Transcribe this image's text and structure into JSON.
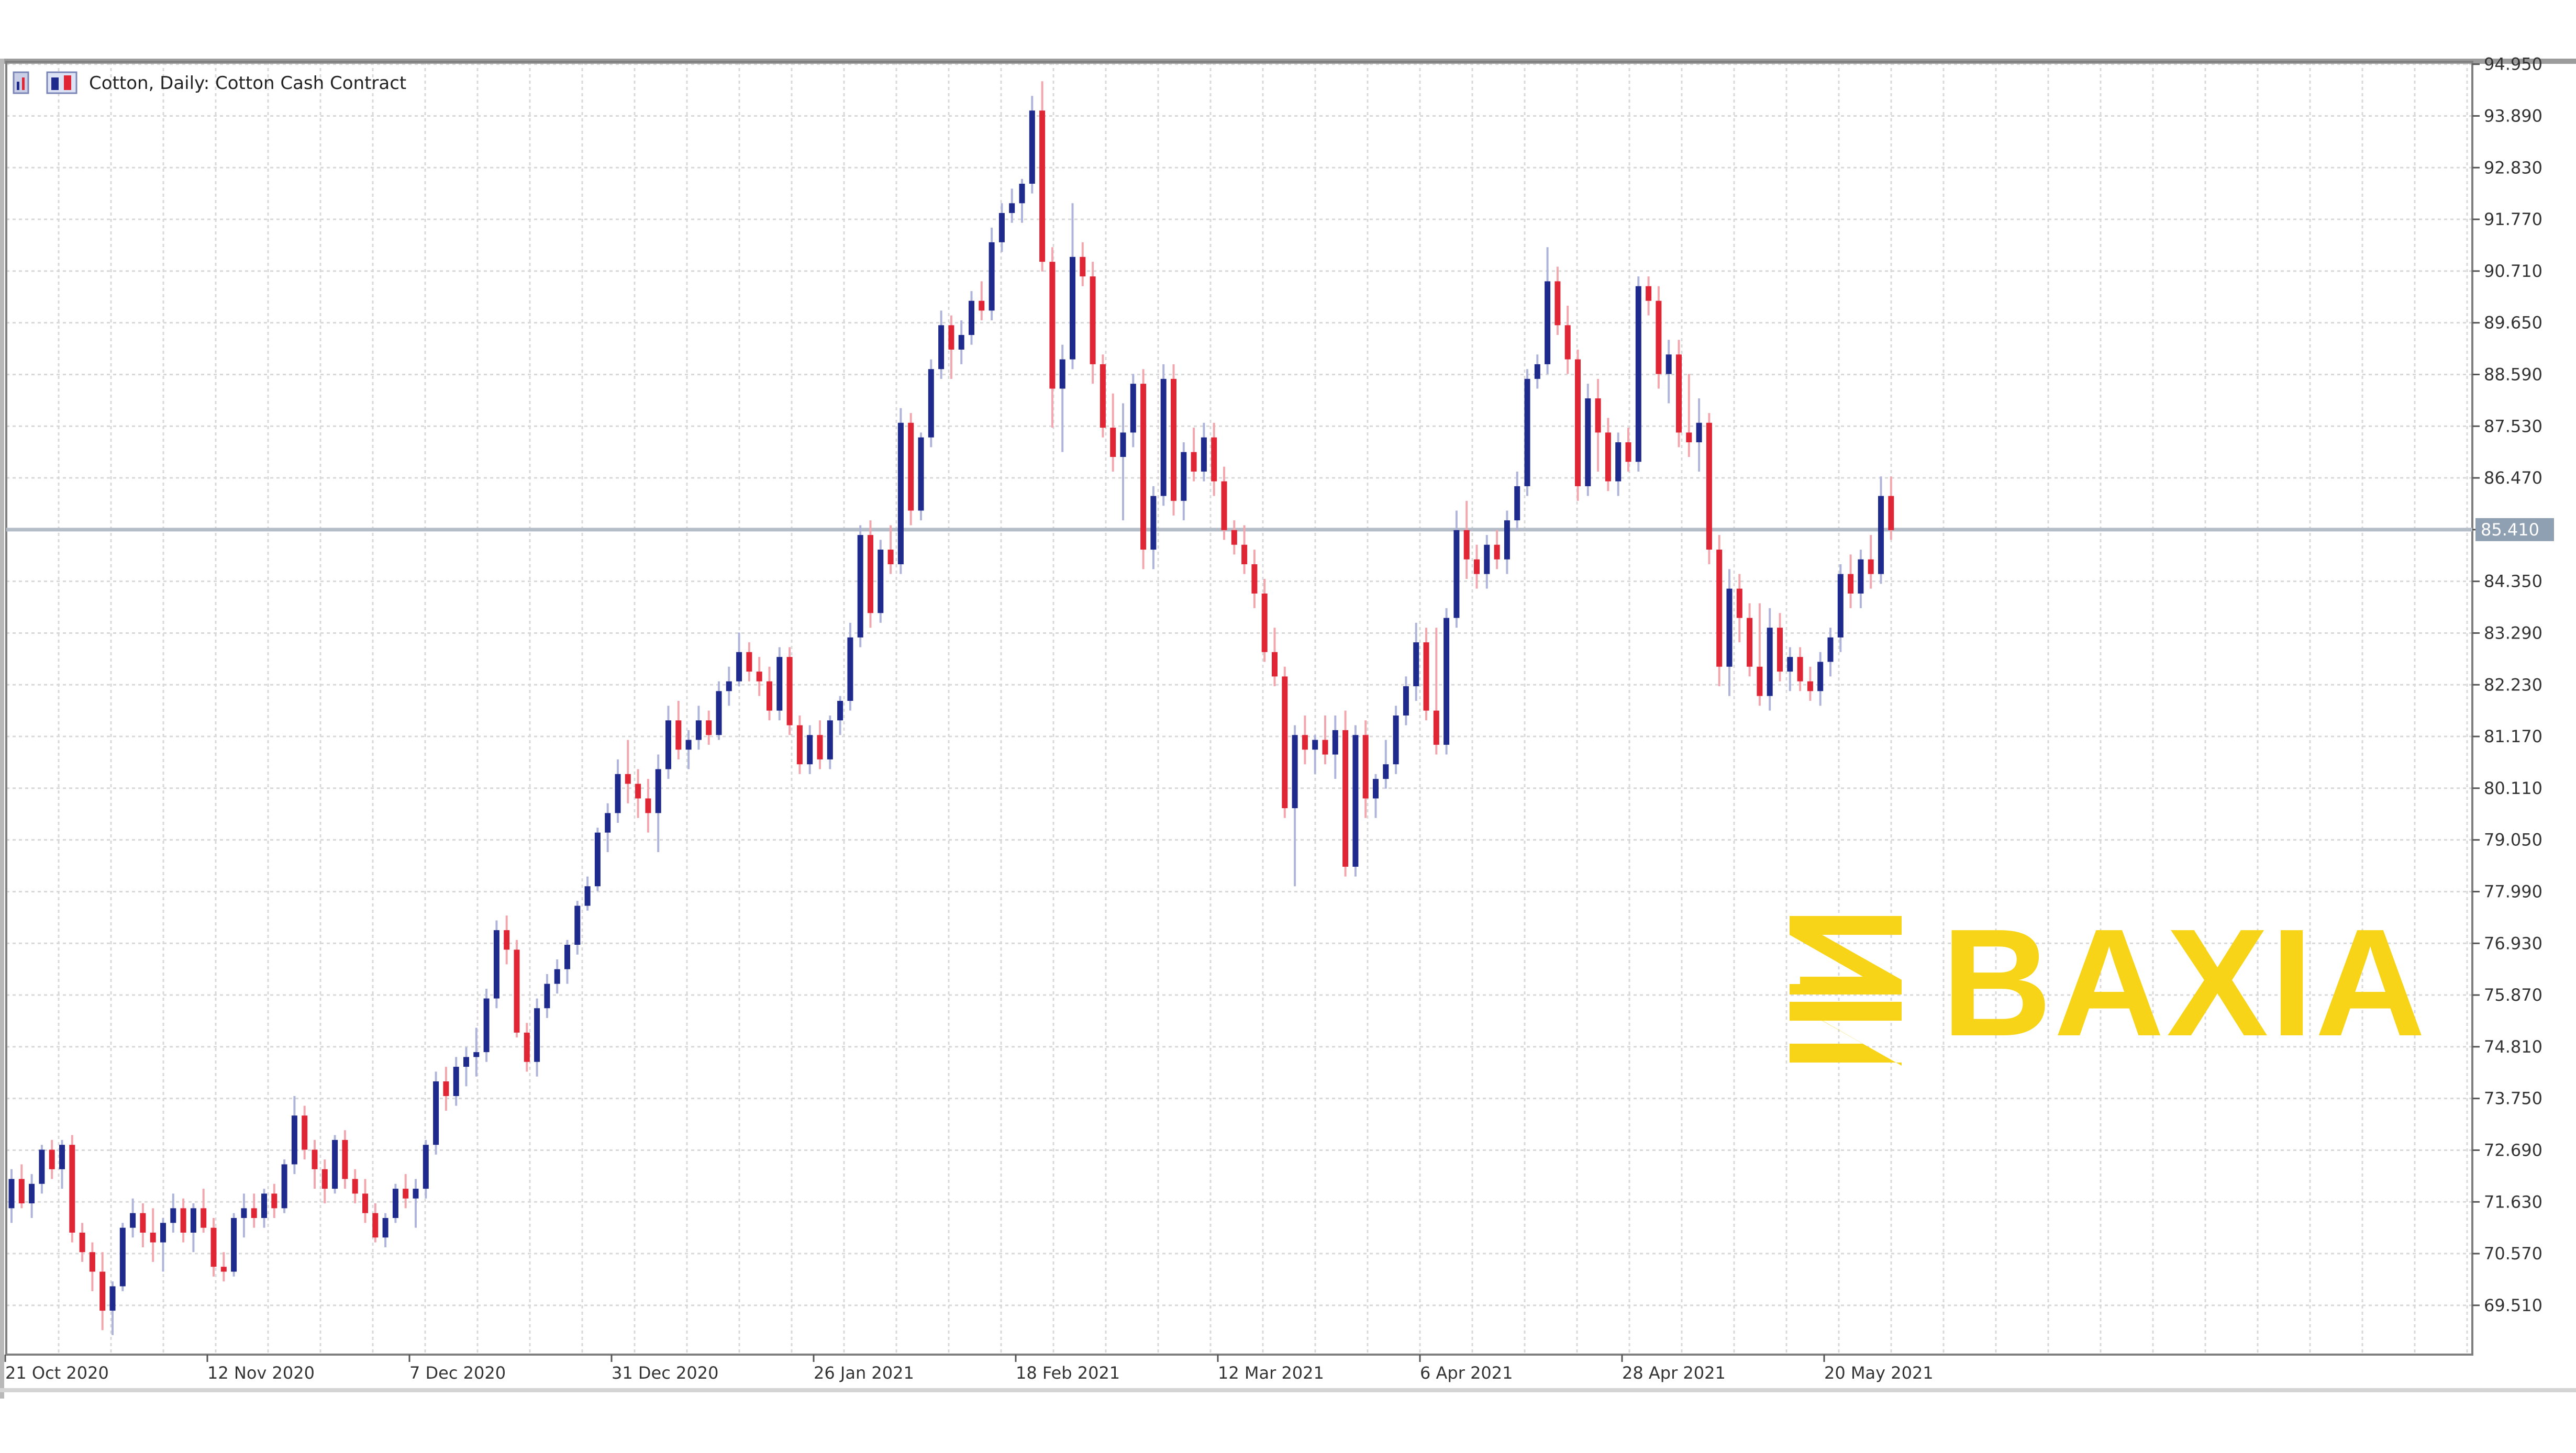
{
  "window": {
    "title": "Cotton, Daily:  Cotton Cash Contract"
  },
  "brand": {
    "name": "BAXIA",
    "color": "#F7D417"
  },
  "colors": {
    "bull": "#1E2A8C",
    "bear": "#E02535",
    "grid": "#D8D8D8",
    "price_line": "#B4BDC8",
    "price_tag": "#8FA0B3"
  },
  "chart_data": {
    "type": "candlestick",
    "symbol": "Cotton",
    "timeframe": "Daily",
    "description": "Cotton Cash Contract",
    "ylim": [
      68.5,
      95.0
    ],
    "y_ticks": [
      "94.950",
      "93.890",
      "92.830",
      "91.770",
      "90.710",
      "89.650",
      "88.590",
      "87.530",
      "86.470",
      "85.410",
      "84.350",
      "83.290",
      "82.230",
      "81.170",
      "80.110",
      "79.050",
      "77.990",
      "76.930",
      "75.870",
      "74.810",
      "73.750",
      "72.690",
      "71.630",
      "70.570",
      "69.510"
    ],
    "x_ticks": [
      "21 Oct 2020",
      "12 Nov 2020",
      "7 Dec 2020",
      "31 Dec 2020",
      "26 Jan 2021",
      "18 Feb 2021",
      "12 Mar 2021",
      "6 Apr 2021",
      "28 Apr 2021",
      "20 May 2021"
    ],
    "x_tick_index": [
      0,
      20,
      40,
      60,
      80,
      100,
      120,
      140,
      160,
      180
    ],
    "current_price": 85.41,
    "grid": true,
    "candles": [
      [
        71.5,
        72.3,
        71.2,
        72.1
      ],
      [
        72.1,
        72.4,
        71.5,
        71.6
      ],
      [
        71.6,
        72.2,
        71.3,
        72.0
      ],
      [
        72.0,
        72.8,
        71.8,
        72.7
      ],
      [
        72.7,
        72.9,
        72.1,
        72.3
      ],
      [
        72.3,
        72.9,
        71.9,
        72.8
      ],
      [
        72.8,
        73.0,
        70.8,
        71.0
      ],
      [
        71.0,
        71.2,
        70.4,
        70.6
      ],
      [
        70.6,
        70.8,
        69.8,
        70.2
      ],
      [
        70.2,
        70.6,
        69.0,
        69.4
      ],
      [
        69.4,
        70.0,
        68.9,
        69.9
      ],
      [
        69.9,
        71.2,
        69.8,
        71.1
      ],
      [
        71.1,
        71.7,
        70.9,
        71.4
      ],
      [
        71.4,
        71.6,
        70.7,
        71.0
      ],
      [
        71.0,
        71.5,
        70.4,
        70.8
      ],
      [
        70.8,
        71.3,
        70.2,
        71.2
      ],
      [
        71.2,
        71.8,
        71.0,
        71.5
      ],
      [
        71.5,
        71.7,
        70.8,
        71.0
      ],
      [
        71.0,
        71.6,
        70.6,
        71.5
      ],
      [
        71.5,
        71.9,
        71.0,
        71.1
      ],
      [
        71.1,
        71.3,
        70.1,
        70.3
      ],
      [
        70.3,
        70.6,
        70.0,
        70.2
      ],
      [
        70.2,
        71.4,
        70.1,
        71.3
      ],
      [
        71.3,
        71.8,
        70.9,
        71.5
      ],
      [
        71.5,
        71.8,
        71.1,
        71.3
      ],
      [
        71.3,
        71.9,
        71.1,
        71.8
      ],
      [
        71.8,
        72.0,
        71.3,
        71.5
      ],
      [
        71.5,
        72.5,
        71.4,
        72.4
      ],
      [
        72.4,
        73.8,
        72.2,
        73.4
      ],
      [
        73.4,
        73.6,
        72.5,
        72.7
      ],
      [
        72.7,
        72.9,
        71.9,
        72.3
      ],
      [
        72.3,
        72.5,
        71.6,
        71.9
      ],
      [
        71.9,
        73.0,
        71.8,
        72.9
      ],
      [
        72.9,
        73.1,
        71.9,
        72.1
      ],
      [
        72.1,
        72.3,
        71.6,
        71.8
      ],
      [
        71.8,
        72.1,
        71.2,
        71.4
      ],
      [
        71.4,
        71.6,
        70.8,
        70.9
      ],
      [
        70.9,
        71.4,
        70.7,
        71.3
      ],
      [
        71.3,
        72.0,
        71.2,
        71.9
      ],
      [
        71.9,
        72.2,
        71.5,
        71.7
      ],
      [
        71.7,
        72.1,
        71.1,
        71.9
      ],
      [
        71.9,
        72.9,
        71.7,
        72.8
      ],
      [
        72.8,
        74.3,
        72.6,
        74.1
      ],
      [
        74.1,
        74.4,
        73.5,
        73.8
      ],
      [
        73.8,
        74.6,
        73.6,
        74.4
      ],
      [
        74.4,
        74.8,
        74.0,
        74.6
      ],
      [
        74.6,
        75.2,
        74.2,
        74.7
      ],
      [
        74.7,
        76.0,
        74.5,
        75.8
      ],
      [
        75.8,
        77.4,
        75.6,
        77.2
      ],
      [
        77.2,
        77.5,
        76.5,
        76.8
      ],
      [
        76.8,
        77.0,
        75.0,
        75.1
      ],
      [
        75.1,
        75.3,
        74.3,
        74.5
      ],
      [
        74.5,
        75.8,
        74.2,
        75.6
      ],
      [
        75.6,
        76.3,
        75.4,
        76.1
      ],
      [
        76.1,
        76.6,
        75.9,
        76.4
      ],
      [
        76.4,
        77.0,
        76.1,
        76.9
      ],
      [
        76.9,
        77.8,
        76.7,
        77.7
      ],
      [
        77.7,
        78.3,
        77.6,
        78.1
      ],
      [
        78.1,
        79.3,
        78.0,
        79.2
      ],
      [
        79.2,
        79.8,
        78.8,
        79.6
      ],
      [
        79.6,
        80.7,
        79.4,
        80.4
      ],
      [
        80.4,
        81.1,
        79.8,
        80.2
      ],
      [
        80.2,
        80.5,
        79.5,
        79.9
      ],
      [
        79.9,
        80.3,
        79.2,
        79.6
      ],
      [
        79.6,
        80.8,
        78.8,
        80.5
      ],
      [
        80.5,
        81.8,
        80.3,
        81.5
      ],
      [
        81.5,
        81.9,
        80.7,
        80.9
      ],
      [
        80.9,
        81.3,
        80.5,
        81.1
      ],
      [
        81.1,
        81.8,
        80.9,
        81.5
      ],
      [
        81.5,
        81.7,
        81.0,
        81.2
      ],
      [
        81.2,
        82.3,
        81.1,
        82.1
      ],
      [
        82.1,
        82.6,
        81.8,
        82.3
      ],
      [
        82.3,
        83.3,
        82.2,
        82.9
      ],
      [
        82.9,
        83.1,
        82.3,
        82.5
      ],
      [
        82.5,
        82.8,
        82.0,
        82.3
      ],
      [
        82.3,
        82.6,
        81.5,
        81.7
      ],
      [
        81.7,
        83.0,
        81.5,
        82.8
      ],
      [
        82.8,
        83.0,
        81.2,
        81.4
      ],
      [
        81.4,
        81.6,
        80.4,
        80.6
      ],
      [
        80.6,
        81.4,
        80.4,
        81.2
      ],
      [
        81.2,
        81.5,
        80.5,
        80.7
      ],
      [
        80.7,
        81.6,
        80.5,
        81.5
      ],
      [
        81.5,
        82.0,
        81.2,
        81.9
      ],
      [
        81.9,
        83.5,
        81.7,
        83.2
      ],
      [
        83.2,
        85.5,
        83.0,
        85.3
      ],
      [
        85.3,
        85.6,
        83.4,
        83.7
      ],
      [
        83.7,
        85.2,
        83.5,
        85.0
      ],
      [
        85.0,
        85.5,
        84.5,
        84.7
      ],
      [
        84.7,
        87.9,
        84.5,
        87.6
      ],
      [
        87.6,
        87.8,
        85.5,
        85.8
      ],
      [
        85.8,
        87.4,
        85.6,
        87.3
      ],
      [
        87.3,
        88.9,
        87.1,
        88.7
      ],
      [
        88.7,
        89.9,
        88.5,
        89.6
      ],
      [
        89.6,
        89.8,
        88.5,
        89.1
      ],
      [
        89.1,
        89.7,
        88.8,
        89.4
      ],
      [
        89.4,
        90.3,
        89.2,
        90.1
      ],
      [
        90.1,
        90.5,
        89.7,
        89.9
      ],
      [
        89.9,
        91.6,
        89.7,
        91.3
      ],
      [
        91.3,
        92.1,
        91.1,
        91.9
      ],
      [
        91.9,
        92.4,
        91.7,
        92.1
      ],
      [
        92.1,
        92.6,
        91.7,
        92.5
      ],
      [
        92.5,
        94.3,
        92.3,
        94.0
      ],
      [
        94.0,
        94.6,
        90.7,
        90.9
      ],
      [
        90.9,
        91.2,
        87.5,
        88.3
      ],
      [
        88.3,
        89.2,
        87.0,
        88.9
      ],
      [
        88.9,
        92.1,
        88.7,
        91.0
      ],
      [
        91.0,
        91.3,
        90.4,
        90.6
      ],
      [
        90.6,
        90.9,
        88.4,
        88.8
      ],
      [
        88.8,
        89.0,
        87.3,
        87.5
      ],
      [
        87.5,
        88.2,
        86.6,
        86.9
      ],
      [
        86.9,
        88.0,
        85.6,
        87.4
      ],
      [
        87.4,
        88.6,
        87.1,
        88.4
      ],
      [
        88.4,
        88.7,
        84.6,
        85.0
      ],
      [
        85.0,
        86.3,
        84.6,
        86.1
      ],
      [
        86.1,
        88.8,
        85.9,
        88.5
      ],
      [
        88.5,
        88.8,
        85.7,
        86.0
      ],
      [
        86.0,
        87.2,
        85.6,
        87.0
      ],
      [
        87.0,
        87.5,
        86.4,
        86.6
      ],
      [
        86.6,
        87.6,
        86.4,
        87.3
      ],
      [
        87.3,
        87.6,
        86.1,
        86.4
      ],
      [
        86.4,
        86.7,
        85.2,
        85.4
      ],
      [
        85.4,
        85.6,
        84.9,
        85.1
      ],
      [
        85.1,
        85.5,
        84.5,
        84.7
      ],
      [
        84.7,
        85.0,
        83.8,
        84.1
      ],
      [
        84.1,
        84.4,
        82.7,
        82.9
      ],
      [
        82.9,
        83.4,
        82.2,
        82.4
      ],
      [
        82.4,
        82.6,
        79.5,
        79.7
      ],
      [
        79.7,
        81.4,
        78.1,
        81.2
      ],
      [
        81.2,
        81.6,
        80.6,
        80.9
      ],
      [
        80.9,
        81.2,
        80.4,
        81.1
      ],
      [
        81.1,
        81.6,
        80.6,
        80.8
      ],
      [
        80.8,
        81.6,
        80.3,
        81.3
      ],
      [
        81.3,
        81.7,
        78.3,
        78.5
      ],
      [
        78.5,
        81.4,
        78.3,
        81.2
      ],
      [
        81.2,
        81.5,
        79.5,
        79.9
      ],
      [
        79.9,
        80.4,
        79.5,
        80.3
      ],
      [
        80.3,
        81.1,
        80.1,
        80.6
      ],
      [
        80.6,
        81.8,
        80.4,
        81.6
      ],
      [
        81.6,
        82.4,
        81.4,
        82.2
      ],
      [
        82.2,
        83.5,
        81.9,
        83.1
      ],
      [
        83.1,
        83.4,
        81.5,
        81.7
      ],
      [
        81.7,
        83.4,
        80.8,
        81.0
      ],
      [
        81.0,
        83.8,
        80.8,
        83.6
      ],
      [
        83.6,
        85.8,
        83.4,
        85.4
      ],
      [
        85.4,
        86.0,
        84.4,
        84.8
      ],
      [
        84.8,
        85.1,
        84.2,
        84.5
      ],
      [
        84.5,
        85.3,
        84.2,
        85.1
      ],
      [
        85.1,
        85.4,
        84.6,
        84.8
      ],
      [
        84.8,
        85.8,
        84.5,
        85.6
      ],
      [
        85.6,
        86.6,
        85.4,
        86.3
      ],
      [
        86.3,
        88.7,
        86.1,
        88.5
      ],
      [
        88.5,
        89.0,
        88.3,
        88.8
      ],
      [
        88.8,
        91.2,
        88.6,
        90.5
      ],
      [
        90.5,
        90.8,
        89.4,
        89.6
      ],
      [
        89.6,
        90.0,
        88.6,
        88.9
      ],
      [
        88.9,
        89.1,
        86.0,
        86.3
      ],
      [
        86.3,
        88.4,
        86.1,
        88.1
      ],
      [
        88.1,
        88.5,
        86.6,
        87.4
      ],
      [
        87.4,
        87.7,
        86.2,
        86.4
      ],
      [
        86.4,
        87.4,
        86.1,
        87.2
      ],
      [
        87.2,
        87.5,
        86.6,
        86.8
      ],
      [
        86.8,
        90.6,
        86.6,
        90.4
      ],
      [
        90.4,
        90.6,
        89.8,
        90.1
      ],
      [
        90.1,
        90.4,
        88.3,
        88.6
      ],
      [
        88.6,
        89.3,
        88.0,
        89.0
      ],
      [
        89.0,
        89.3,
        87.1,
        87.4
      ],
      [
        87.4,
        88.6,
        86.9,
        87.2
      ],
      [
        87.2,
        88.1,
        86.6,
        87.6
      ],
      [
        87.6,
        87.8,
        84.7,
        85.0
      ],
      [
        85.0,
        85.3,
        82.2,
        82.6
      ],
      [
        82.6,
        84.6,
        82.0,
        84.2
      ],
      [
        84.2,
        84.5,
        83.1,
        83.6
      ],
      [
        83.6,
        83.9,
        82.4,
        82.6
      ],
      [
        82.6,
        83.9,
        81.8,
        82.0
      ],
      [
        82.0,
        83.8,
        81.7,
        83.4
      ],
      [
        83.4,
        83.7,
        82.3,
        82.5
      ],
      [
        82.5,
        83.0,
        82.1,
        82.8
      ],
      [
        82.8,
        83.0,
        82.1,
        82.3
      ],
      [
        82.3,
        82.6,
        81.9,
        82.1
      ],
      [
        82.1,
        82.9,
        81.8,
        82.7
      ],
      [
        82.7,
        83.4,
        82.4,
        83.2
      ],
      [
        83.2,
        84.7,
        82.9,
        84.5
      ],
      [
        84.5,
        84.9,
        83.8,
        84.1
      ],
      [
        84.1,
        85.0,
        83.8,
        84.8
      ],
      [
        84.8,
        85.3,
        84.2,
        84.5
      ],
      [
        84.5,
        86.5,
        84.3,
        86.1
      ],
      [
        86.1,
        86.5,
        85.2,
        85.4
      ]
    ]
  }
}
